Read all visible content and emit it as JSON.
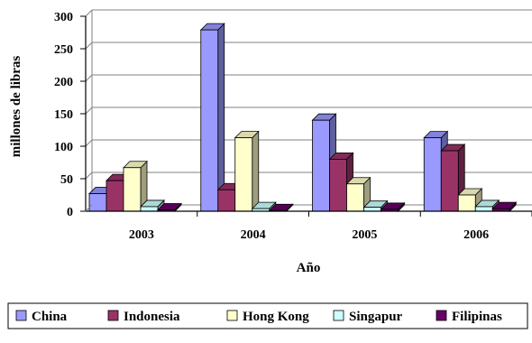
{
  "chart_data": {
    "type": "bar",
    "title": "",
    "xlabel": "Año",
    "ylabel": "millones de libras",
    "categories": [
      "2003",
      "2004",
      "2005",
      "2006"
    ],
    "ylim": [
      0,
      300
    ],
    "yticks": [
      0,
      50,
      100,
      150,
      200,
      250,
      300
    ],
    "grid": true,
    "legend_position": "bottom",
    "series": [
      {
        "name": "China",
        "color": "#9999ff",
        "values": [
          27,
          279,
          140,
          113
        ]
      },
      {
        "name": "Indonesia",
        "color": "#993366",
        "values": [
          47,
          33,
          80,
          93
        ]
      },
      {
        "name": "Hong Kong",
        "color": "#ffffcc",
        "values": [
          67,
          113,
          42,
          25
        ]
      },
      {
        "name": "Singapur",
        "color": "#ccffff",
        "values": [
          7,
          4,
          6,
          7
        ]
      },
      {
        "name": "Filipinas",
        "color": "#660066",
        "values": [
          2,
          1,
          3,
          4
        ]
      }
    ]
  }
}
